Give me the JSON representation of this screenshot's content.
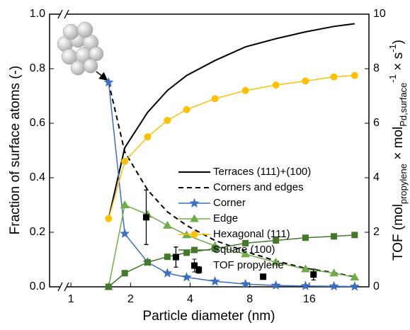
{
  "chart_data": {
    "type": "line",
    "ylabel": "Fraction of surface atoms (-)",
    "xlabel": "Particle diameter (nm)",
    "y2label": [
      {
        "text": "TOF  (mol"
      },
      {
        "text": "propylene",
        "style": "sub"
      },
      {
        "text": " × mol"
      },
      {
        "text": "Pd,surface",
        "style": "sub"
      },
      {
        "text": "-1",
        "style": "sup"
      },
      {
        "text": " × s"
      },
      {
        "text": "-1",
        "style": "sup"
      },
      {
        "text": ")"
      }
    ],
    "log_x": true,
    "xlim": [
      0.78,
      32
    ],
    "xticks": [
      1,
      2,
      4,
      8,
      16
    ],
    "ylim": [
      0,
      1
    ],
    "yticks": [
      {
        "value": 0,
        "label": "0.0"
      },
      0.2,
      0.4,
      0.6,
      0.8,
      {
        "value": 1,
        "label": "1.0"
      }
    ],
    "y2lim": [
      0,
      10
    ],
    "y2ticks": [
      0,
      2,
      4,
      6,
      8,
      10
    ],
    "x": [
      1.55,
      1.87,
      2.44,
      3.07,
      3.84,
      5.34,
      7.61,
      10.85,
      15.3,
      21.3,
      27.1
    ],
    "series": [
      {
        "name": "Terraces (111)+(100)",
        "color": "#000000",
        "marker": "none",
        "dash": false,
        "values": [
          0.25,
          0.51,
          0.64,
          0.72,
          0.775,
          0.83,
          0.88,
          0.91,
          0.935,
          0.955,
          0.965
        ]
      },
      {
        "name": "Corners and edges",
        "color": "#000000",
        "marker": "none",
        "dash": true,
        "values": [
          0.75,
          0.495,
          0.355,
          0.275,
          0.225,
          0.17,
          0.13,
          0.095,
          0.068,
          0.052,
          0.036
        ]
      },
      {
        "name": "Corner",
        "color": "#3b6fc4",
        "marker": "star",
        "dash": false,
        "values": [
          0.75,
          0.195,
          0.09,
          0.05,
          0.035,
          0.02,
          0.01,
          0.005,
          0.003,
          0.002,
          0.001
        ]
      },
      {
        "name": "Edge",
        "color": "#70ad47",
        "marker": "triangle",
        "dash": false,
        "values": [
          0,
          0.3,
          0.265,
          0.225,
          0.19,
          0.15,
          0.12,
          0.09,
          0.065,
          0.05,
          0.035
        ]
      },
      {
        "name": "Hexagonal (111)",
        "color": "#ffc000",
        "marker": "circle",
        "dash": false,
        "values": [
          0.25,
          0.46,
          0.55,
          0.61,
          0.65,
          0.69,
          0.72,
          0.74,
          0.755,
          0.77,
          0.775
        ]
      },
      {
        "name": "Square (100)",
        "color": "#44782a",
        "marker": "square",
        "dash": false,
        "values": [
          0,
          0.05,
          0.09,
          0.11,
          0.125,
          0.14,
          0.16,
          0.17,
          0.18,
          0.185,
          0.19
        ]
      },
      {
        "name": "TOF propylene",
        "color": "#000000",
        "marker": "square",
        "axis": "y2",
        "scatter": true,
        "x": [
          2.4,
          3.39,
          4.42,
          9.35,
          16.8
        ],
        "values": [
          2.55,
          1.09,
          0.62,
          0.37,
          0.45
        ],
        "errors": [
          1.0,
          0.37,
          0.12,
          0.08,
          0.2
        ]
      }
    ]
  }
}
